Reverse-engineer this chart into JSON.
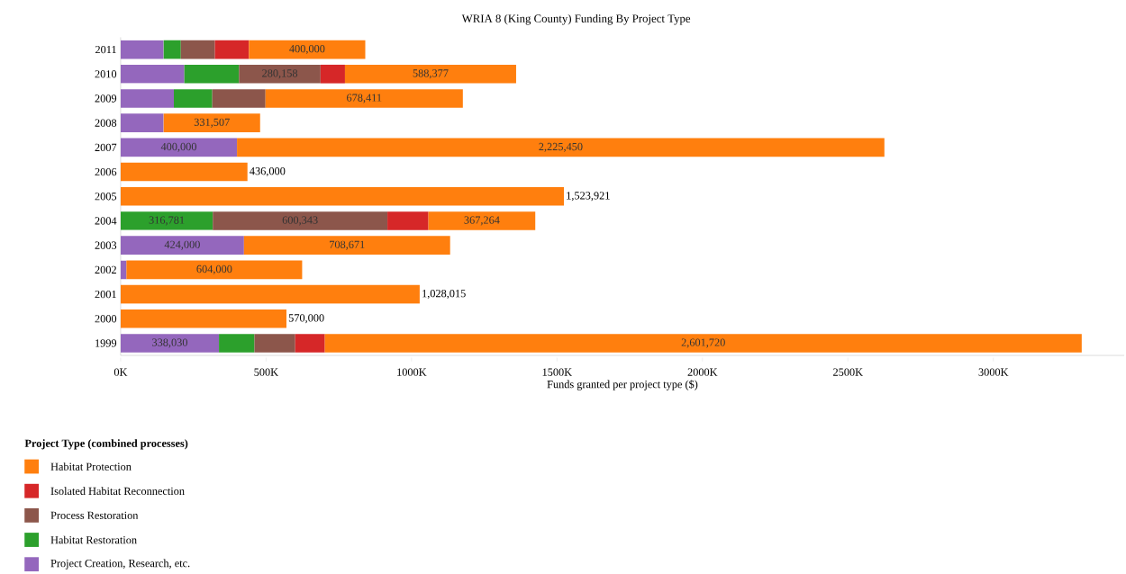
{
  "chart_data": {
    "type": "bar",
    "orientation": "horizontal",
    "stacked": true,
    "title": "WRIA 8 (King County) Funding By Project Type",
    "xlabel": "Funds granted per project type ($)",
    "legend_title": "Project Type (combined processes)",
    "legend": "bottom",
    "categories": [
      "2011",
      "2010",
      "2009",
      "2008",
      "2007",
      "2006",
      "2005",
      "2004",
      "2003",
      "2002",
      "2001",
      "2000",
      "1999"
    ],
    "xlim": [
      0,
      3450000
    ],
    "xticks": [
      {
        "value": 0,
        "label": "0K"
      },
      {
        "value": 500000,
        "label": "500K"
      },
      {
        "value": 1000000,
        "label": "1000K"
      },
      {
        "value": 1500000,
        "label": "1500K"
      },
      {
        "value": 2000000,
        "label": "2000K"
      },
      {
        "value": 2500000,
        "label": "2500K"
      },
      {
        "value": 3000000,
        "label": "3000K"
      }
    ],
    "series": [
      {
        "name": "Project Creation, Research, etc.",
        "color": "#9467bd",
        "values": [
          148000,
          219000,
          183000,
          148000,
          400000,
          null,
          null,
          null,
          424000,
          20000,
          null,
          null,
          338030
        ],
        "value_labels": [
          null,
          null,
          null,
          null,
          "400,000",
          null,
          null,
          null,
          "424,000",
          null,
          null,
          null,
          "338,030"
        ]
      },
      {
        "name": "Habitat Restoration",
        "color": "#2ca02c",
        "values": [
          59000,
          188000,
          132000,
          null,
          null,
          null,
          null,
          316781,
          null,
          null,
          null,
          null,
          122000
        ],
        "value_labels": [
          null,
          null,
          null,
          null,
          null,
          null,
          null,
          "316,781",
          null,
          null,
          null,
          null,
          null
        ]
      },
      {
        "name": "Process Restoration",
        "color": "#8c564b",
        "values": [
          117000,
          280158,
          183000,
          null,
          null,
          null,
          null,
          600343,
          null,
          null,
          null,
          null,
          140000
        ],
        "value_labels": [
          null,
          "280,158",
          null,
          null,
          null,
          null,
          null,
          "600,343",
          null,
          null,
          null,
          null,
          null
        ]
      },
      {
        "name": "Isolated Habitat Reconnection",
        "color": "#d62728",
        "values": [
          117000,
          84000,
          null,
          null,
          null,
          null,
          null,
          141000,
          null,
          null,
          null,
          null,
          102000
        ],
        "value_labels": [
          null,
          null,
          null,
          null,
          null,
          null,
          null,
          null,
          null,
          null,
          null,
          null,
          null
        ]
      },
      {
        "name": "Habitat Protection",
        "color": "#ff7f0e",
        "values": [
          400000,
          588377,
          678411,
          331507,
          2225450,
          436000,
          1523921,
          367264,
          708671,
          604000,
          1028015,
          570000,
          2601720
        ],
        "value_labels": [
          "400,000",
          "588,377",
          "678,411",
          "331,507",
          "2,225,450",
          "436,000",
          "1,523,921",
          "367,264",
          "708,671",
          "604,000",
          "1,028,015",
          "570,000",
          "2,601,720"
        ]
      }
    ]
  }
}
